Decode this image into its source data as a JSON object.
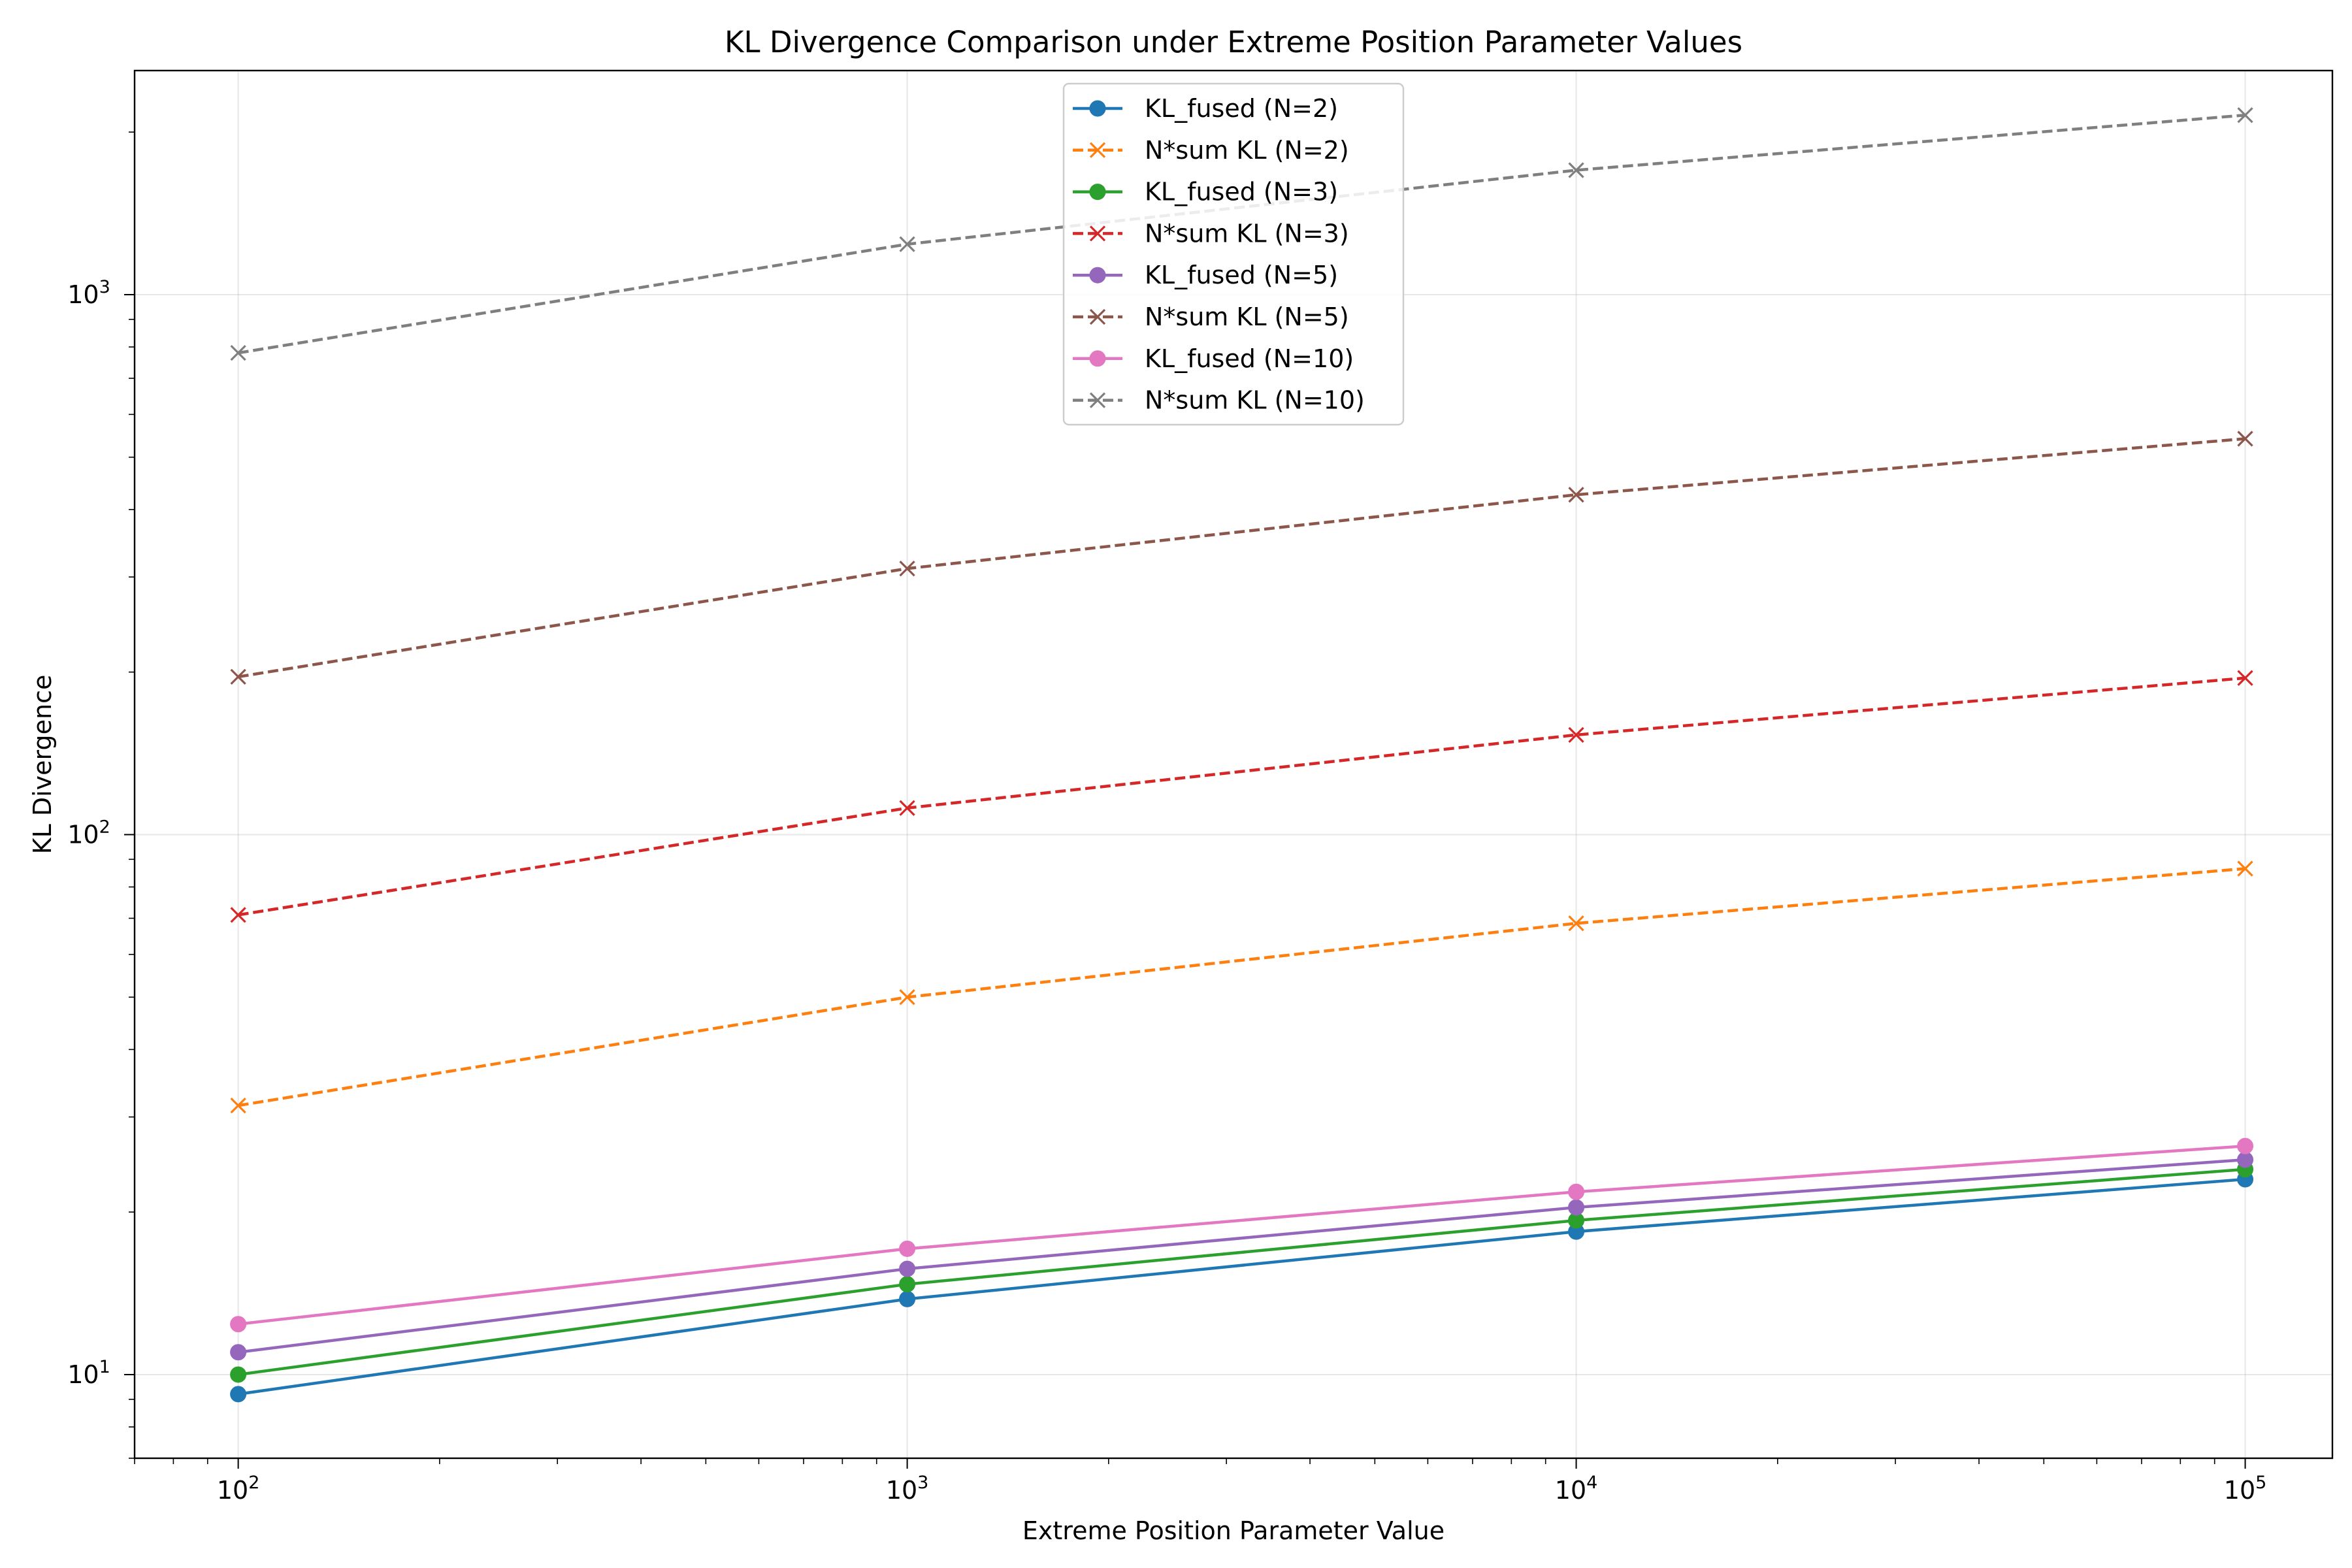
{
  "chart_data": {
    "type": "line",
    "title": "KL Divergence Comparison under Extreme Position Parameter Values",
    "xlabel": "Extreme Position Parameter Value",
    "ylabel": "KL Divergence",
    "x_scale": "log",
    "y_scale": "log",
    "x": [
      100,
      1000,
      10000,
      100000
    ],
    "x_ticks": [
      {
        "value": 100,
        "base": "10",
        "exp": "2"
      },
      {
        "value": 1000,
        "base": "10",
        "exp": "3"
      },
      {
        "value": 10000,
        "base": "10",
        "exp": "4"
      },
      {
        "value": 100000,
        "base": "10",
        "exp": "5"
      }
    ],
    "y_ticks": [
      {
        "value": 10,
        "base": "10",
        "exp": "1"
      },
      {
        "value": 100,
        "base": "10",
        "exp": "2"
      },
      {
        "value": 1000,
        "base": "10",
        "exp": "3"
      }
    ],
    "xlim": [
      70,
      135000
    ],
    "ylim": [
      7,
      2600
    ],
    "grid": true,
    "legend_position": "top-center",
    "series": [
      {
        "name": "KL_fused (N=2)",
        "color": "#1f77b4",
        "style": "solid",
        "marker": "circle",
        "values": [
          9.2,
          13.8,
          18.4,
          23.0
        ]
      },
      {
        "name": "N*sum KL (N=2)",
        "color": "#ff7f0e",
        "style": "dashed",
        "marker": "x",
        "values": [
          31.5,
          50.0,
          68.5,
          86.5
        ]
      },
      {
        "name": "KL_fused (N=3)",
        "color": "#2ca02c",
        "style": "solid",
        "marker": "circle",
        "values": [
          10.0,
          14.7,
          19.3,
          24.0
        ]
      },
      {
        "name": "N*sum KL (N=3)",
        "color": "#d62728",
        "style": "dashed",
        "marker": "x",
        "values": [
          71.0,
          112.0,
          153.0,
          195.0
        ]
      },
      {
        "name": "KL_fused (N=5)",
        "color": "#9467bd",
        "style": "solid",
        "marker": "circle",
        "values": [
          11.0,
          15.7,
          20.4,
          25.0
        ]
      },
      {
        "name": "N*sum KL (N=5)",
        "color": "#8c564b",
        "style": "dashed",
        "marker": "x",
        "values": [
          196.0,
          311.0,
          426.0,
          541.0
        ]
      },
      {
        "name": "KL_fused (N=10)",
        "color": "#e377c2",
        "style": "solid",
        "marker": "circle",
        "values": [
          12.4,
          17.1,
          21.8,
          26.5
        ]
      },
      {
        "name": "N*sum KL (N=10)",
        "color": "#7f7f7f",
        "style": "dashed",
        "marker": "x",
        "values": [
          780.0,
          1240.0,
          1700.0,
          2150.0
        ]
      }
    ]
  }
}
